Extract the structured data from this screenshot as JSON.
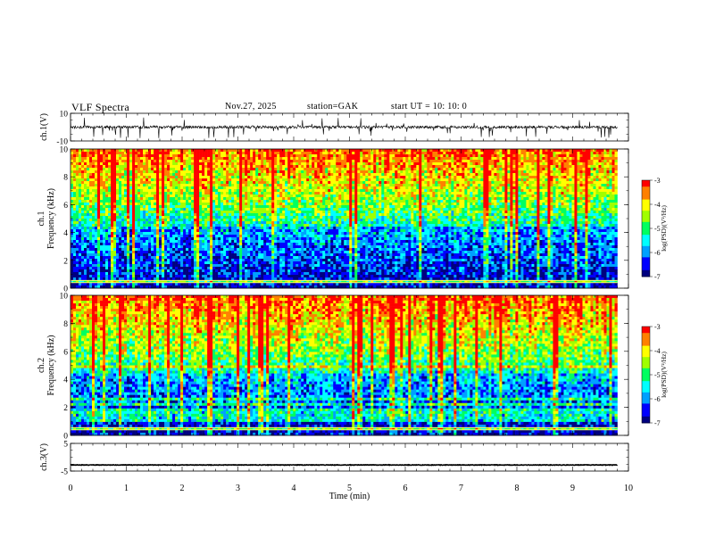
{
  "header": {
    "title": "VLF  Spectra",
    "date": "Nov.27, 2025",
    "station": "station=GAK",
    "start_ut": "start  UT  =    10: 10: 0"
  },
  "colors": {
    "spectrum_scale": [
      "#000080",
      "#0000ff",
      "#00a0ff",
      "#00ffff",
      "#00ff60",
      "#a0ff00",
      "#ffff00",
      "#ff8000",
      "#ff0000"
    ],
    "background": "#ffffff",
    "axes": "#000000"
  },
  "chart_data": [
    {
      "type": "line",
      "name": "waveform-ch1",
      "ylabel": "ch.1(V)",
      "ylim": [
        -10,
        10
      ],
      "yticks": [
        "10",
        "-10"
      ],
      "xlim": [
        0,
        10
      ],
      "baseline": 0,
      "noise_amplitude": 2,
      "data_end_min": 9.8
    },
    {
      "type": "heatmap",
      "name": "spectrogram-ch1",
      "ylabel": "ch.1\nFrequency  (kHz)",
      "ylim": [
        0,
        10
      ],
      "yticks": [
        "0",
        "2",
        "4",
        "6",
        "8",
        "10"
      ],
      "xlim": [
        0,
        10
      ],
      "data_end_min": 9.8,
      "colorbar": {
        "label": "log(PSD)(V²/Hz)",
        "ticks": [
          "-3",
          "-4",
          "-5",
          "-6",
          "-7"
        ],
        "range": [
          -7,
          -3
        ]
      }
    },
    {
      "type": "heatmap",
      "name": "spectrogram-ch2",
      "ylabel": "ch.2\nFrequency  (kHz)",
      "ylim": [
        0,
        10
      ],
      "yticks": [
        "0",
        "2",
        "4",
        "6",
        "8",
        "10"
      ],
      "xlim": [
        0,
        10
      ],
      "data_end_min": 9.8,
      "colorbar": {
        "label": "log(PSD)(V²/Hz)",
        "ticks": [
          "-3",
          "-4",
          "-5",
          "-6",
          "-7"
        ],
        "range": [
          -7,
          -3
        ]
      }
    },
    {
      "type": "line",
      "name": "waveform-ch3",
      "ylabel": "ch.3(V)",
      "ylim": [
        -5,
        5
      ],
      "yticks": [
        "5",
        "-5"
      ],
      "xlim": [
        0,
        10
      ],
      "baseline": -2.8,
      "noise_amplitude": 0.2,
      "data_end_min": 9.8
    }
  ],
  "xaxis": {
    "label": "Time  (min)",
    "ticks": [
      "0",
      "1",
      "2",
      "3",
      "4",
      "5",
      "6",
      "7",
      "8",
      "9",
      "10"
    ]
  }
}
